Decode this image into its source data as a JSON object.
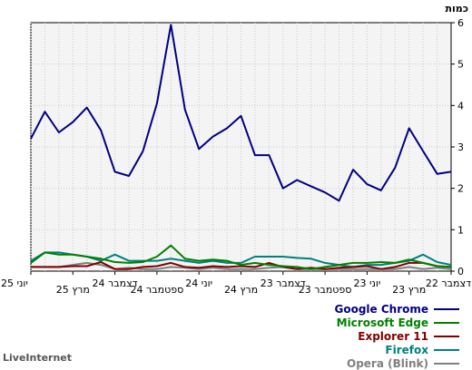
{
  "chart_data": {
    "type": "line",
    "ylabel": "כמות",
    "ylim": [
      0,
      6
    ],
    "yticks": [
      "0",
      "1",
      "2",
      "3",
      "4",
      "5",
      "6"
    ],
    "grid": true,
    "x": [
      "12/2022",
      "01/2023",
      "02/2023",
      "03/2023",
      "04/2023",
      "05/2023",
      "06/2023",
      "07/2023",
      "08/2023",
      "09/2023",
      "10/2023",
      "11/2023",
      "12/2023",
      "01/2024",
      "02/2024",
      "03/2024",
      "04/2024",
      "05/2024",
      "06/2024",
      "07/2024",
      "08/2024",
      "09/2024",
      "10/2024",
      "11/2024",
      "12/2024",
      "01/2025",
      "02/2025",
      "03/2025",
      "04/2025",
      "05/2025",
      "06/2025"
    ],
    "xtick_labels": [
      {
        "at": 0,
        "label": "דצמבר 22"
      },
      {
        "at": 3,
        "label": "מרץ 23"
      },
      {
        "at": 6,
        "label": "יוני 23"
      },
      {
        "at": 9,
        "label": "ספטמבר 23"
      },
      {
        "at": 12,
        "label": "דצמבר 23"
      },
      {
        "at": 15,
        "label": "מרץ 24"
      },
      {
        "at": 18,
        "label": "יוני 24"
      },
      {
        "at": 21,
        "label": "ספטמבר 24"
      },
      {
        "at": 24,
        "label": "דצמבר 24"
      },
      {
        "at": 27,
        "label": "מרץ 25"
      },
      {
        "at": 30,
        "label": "יוני 25"
      }
    ],
    "x_direction": "right-to-left",
    "series": [
      {
        "name": "Google Chrome",
        "color": "#000080",
        "values": [
          2.4,
          2.35,
          2.9,
          3.45,
          2.5,
          1.95,
          2.1,
          2.45,
          1.7,
          1.9,
          2.05,
          2.2,
          2.0,
          2.8,
          2.8,
          3.75,
          3.45,
          3.25,
          2.95,
          3.9,
          5.95,
          4.05,
          2.9,
          2.3,
          2.4,
          3.4,
          3.95,
          3.6,
          3.35,
          3.85,
          3.2
        ]
      },
      {
        "name": "Microsoft Edge",
        "color": "#008000",
        "values": [
          0.1,
          0.12,
          0.2,
          0.28,
          0.2,
          0.22,
          0.2,
          0.2,
          0.15,
          0.1,
          0.05,
          0.1,
          0.12,
          0.15,
          0.2,
          0.15,
          0.25,
          0.28,
          0.25,
          0.3,
          0.62,
          0.35,
          0.22,
          0.2,
          0.22,
          0.3,
          0.35,
          0.4,
          0.4,
          0.45,
          0.2
        ]
      },
      {
        "name": "Explorer 11",
        "color": "#800000",
        "values": [
          0.1,
          0.12,
          0.2,
          0.2,
          0.1,
          0.05,
          0.12,
          0.1,
          0.08,
          0.05,
          0.08,
          0.05,
          0.1,
          0.2,
          0.1,
          0.12,
          0.1,
          0.12,
          0.08,
          0.1,
          0.2,
          0.12,
          0.1,
          0.05,
          0.05,
          0.22,
          0.12,
          0.12,
          0.1,
          0.1,
          0.1
        ]
      },
      {
        "name": "Firefox",
        "color": "#008080",
        "values": [
          0.15,
          0.22,
          0.4,
          0.25,
          0.2,
          0.15,
          0.15,
          0.1,
          0.15,
          0.2,
          0.3,
          0.32,
          0.35,
          0.35,
          0.35,
          0.2,
          0.2,
          0.25,
          0.2,
          0.25,
          0.3,
          0.25,
          0.25,
          0.25,
          0.4,
          0.25,
          0.35,
          0.4,
          0.45,
          0.45,
          0.25
        ]
      },
      {
        "name": "Opera (Blink)",
        "color": "#808080",
        "values": [
          0.05,
          0.08,
          0.05,
          0.1,
          0.05,
          0.05,
          0.05,
          0.05,
          0.05,
          0.05,
          0.05,
          0.05,
          0.1,
          0.08,
          0.05,
          0.05,
          0.05,
          0.08,
          0.05,
          0.08,
          0.1,
          0.05,
          0.05,
          0.08,
          0.05,
          0.15,
          0.2,
          0.15,
          0.1,
          0.1,
          0.1
        ]
      }
    ]
  },
  "branding": "LiveInternet"
}
